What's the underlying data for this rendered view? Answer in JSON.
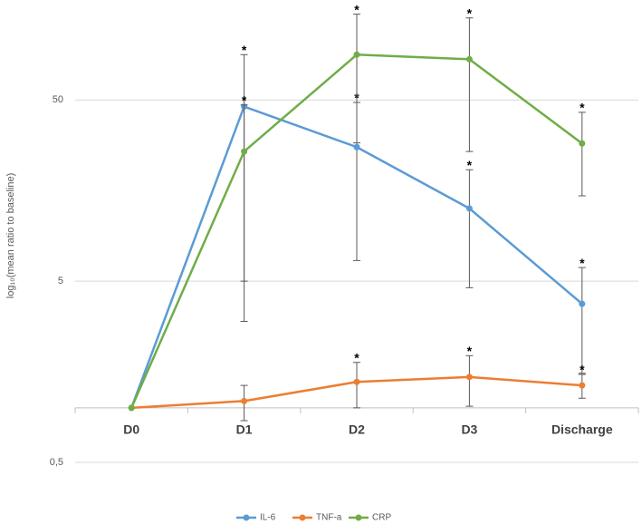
{
  "chart_data": {
    "type": "line",
    "y_label": "log₁₀(mean ratio to baseline)",
    "categories": [
      "D0",
      "D1",
      "D2",
      "D3",
      "Discharge"
    ],
    "log_scale": true,
    "grid": true,
    "xaxis_crosses": 1,
    "legend": "bottom",
    "ylim": [
      0.5,
      150
    ],
    "yticks": [
      {
        "value": 0.5,
        "label": "0,5"
      },
      5,
      50
    ],
    "series": [
      {
        "name": "IL-6",
        "color": "#5b9bd5",
        "values": [
          1,
          46,
          27.5,
          12.6,
          3.75
        ],
        "errors": [
          null,
          43,
          21,
          8,
          2.2
        ],
        "markers": [
          null,
          "*",
          "*",
          "*",
          "*"
        ]
      },
      {
        "name": "TNF-a",
        "color": "#ed7d31",
        "values": [
          1,
          1.09,
          1.39,
          1.48,
          1.33
        ],
        "errors": [
          null,
          0.24,
          0.39,
          0.46,
          0.2
        ],
        "markers": [
          null,
          null,
          "*",
          "*",
          "*"
        ]
      },
      {
        "name": "CRP",
        "color": "#70ad47",
        "values": [
          1,
          26,
          89,
          84,
          28.8
        ],
        "errors": [
          null,
          21,
          60,
          58,
          14
        ],
        "markers": [
          null,
          "*",
          "*",
          "*",
          "*"
        ]
      }
    ]
  }
}
